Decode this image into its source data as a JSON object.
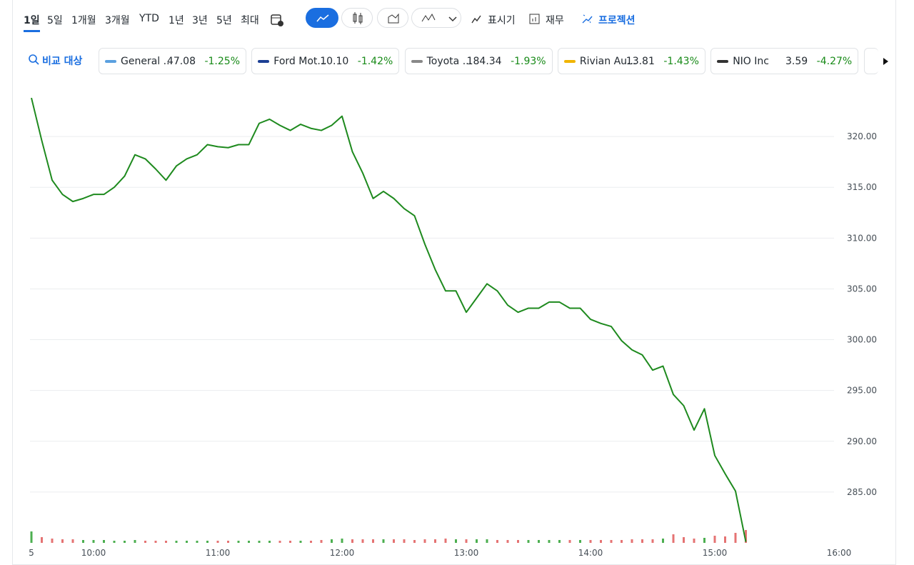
{
  "toolbar": {
    "ranges": [
      "1일",
      "5일",
      "1개월",
      "3개월",
      "YTD",
      "1년",
      "3년",
      "5년",
      "최대"
    ],
    "tools": [
      "표시기",
      "재무",
      "프로젝션"
    ]
  },
  "compare": {
    "label": "비교 대상",
    "items": [
      {
        "name": "General ...",
        "price": "47.08",
        "change": "-1.25%"
      },
      {
        "name": "Ford Mot...",
        "price": "10.10",
        "change": "-1.42%"
      },
      {
        "name": "Toyota ...",
        "price": "184.34",
        "change": "-1.93%"
      },
      {
        "name": "Rivian Au...",
        "price": "13.81",
        "change": "-1.43%"
      },
      {
        "name": "NIO Inc",
        "price": "3.59",
        "change": "-4.27%"
      }
    ]
  },
  "chart_data": {
    "type": "line",
    "color": "#1e8a1e",
    "grid": true,
    "x": [
      "09:30",
      "09:35",
      "09:40",
      "09:45",
      "09:50",
      "09:55",
      "10:00",
      "10:05",
      "10:10",
      "10:15",
      "10:20",
      "10:25",
      "10:30",
      "10:35",
      "10:40",
      "10:45",
      "10:50",
      "10:55",
      "11:00",
      "11:05",
      "11:10",
      "11:15",
      "11:20",
      "11:25",
      "11:30",
      "11:35",
      "11:40",
      "11:45",
      "11:50",
      "11:55",
      "12:00",
      "12:05",
      "12:10",
      "12:15",
      "12:20",
      "12:25",
      "12:30",
      "12:35",
      "12:40",
      "12:45",
      "12:50",
      "12:55",
      "13:00",
      "13:05",
      "13:10",
      "13:15",
      "13:20",
      "13:25",
      "13:30",
      "13:35",
      "13:40",
      "13:45",
      "13:50",
      "13:55",
      "14:00",
      "14:05",
      "14:10",
      "14:15",
      "14:20",
      "14:25",
      "14:30",
      "14:35",
      "14:40",
      "14:45",
      "14:50",
      "14:55",
      "15:00",
      "15:05",
      "15:10",
      "15:15"
    ],
    "values": [
      323.8,
      319.6,
      315.7,
      314.3,
      313.6,
      313.9,
      314.3,
      314.3,
      315.0,
      316.1,
      318.2,
      317.8,
      316.8,
      315.7,
      317.1,
      317.8,
      318.2,
      319.2,
      319.0,
      318.9,
      319.2,
      319.2,
      321.3,
      321.7,
      321.1,
      320.6,
      321.2,
      320.8,
      320.6,
      321.1,
      322.0,
      318.5,
      316.4,
      313.9,
      314.6,
      313.9,
      312.9,
      312.2,
      309.4,
      306.9,
      304.8,
      304.8,
      302.7,
      304.1,
      305.5,
      304.8,
      303.4,
      302.7,
      303.1,
      303.1,
      303.7,
      303.7,
      303.1,
      303.1,
      302.0,
      301.6,
      301.3,
      299.9,
      299.0,
      298.5,
      297.0,
      297.4,
      294.6,
      293.5,
      291.1,
      293.2,
      288.6,
      286.8,
      285.1,
      280.1
    ],
    "volume": [
      16,
      8,
      6,
      5,
      5,
      4,
      4,
      4,
      3,
      3,
      4,
      3,
      3,
      3,
      3,
      3,
      3,
      3,
      3,
      3,
      3,
      3,
      3,
      3,
      3,
      3,
      3,
      3,
      4,
      5,
      6,
      5,
      5,
      5,
      5,
      5,
      5,
      4,
      5,
      5,
      6,
      5,
      5,
      5,
      5,
      4,
      4,
      4,
      4,
      4,
      4,
      4,
      4,
      4,
      4,
      4,
      4,
      4,
      5,
      5,
      5,
      6,
      12,
      8,
      6,
      7,
      10,
      9,
      14,
      18
    ],
    "up_color": "#4caf50",
    "down_color": "#e57373",
    "xlim": [
      "09:30",
      "16:00"
    ],
    "xticks": [
      {
        "value": "09:30",
        "label": "5"
      },
      "10:00",
      "11:00",
      "12:00",
      "13:00",
      "14:00",
      "15:00",
      "16:00"
    ],
    "ylim": [
      280,
      325
    ],
    "yticks": [
      {
        "value": 285,
        "label": "285.00"
      },
      {
        "value": 290,
        "label": "290.00"
      },
      {
        "value": 295,
        "label": "295.00"
      },
      {
        "value": 300,
        "label": "300.00"
      },
      {
        "value": 305,
        "label": "305.00"
      },
      {
        "value": 310,
        "label": "310.00"
      },
      {
        "value": 315,
        "label": "315.00"
      },
      {
        "value": 320,
        "label": "320.00"
      }
    ]
  }
}
